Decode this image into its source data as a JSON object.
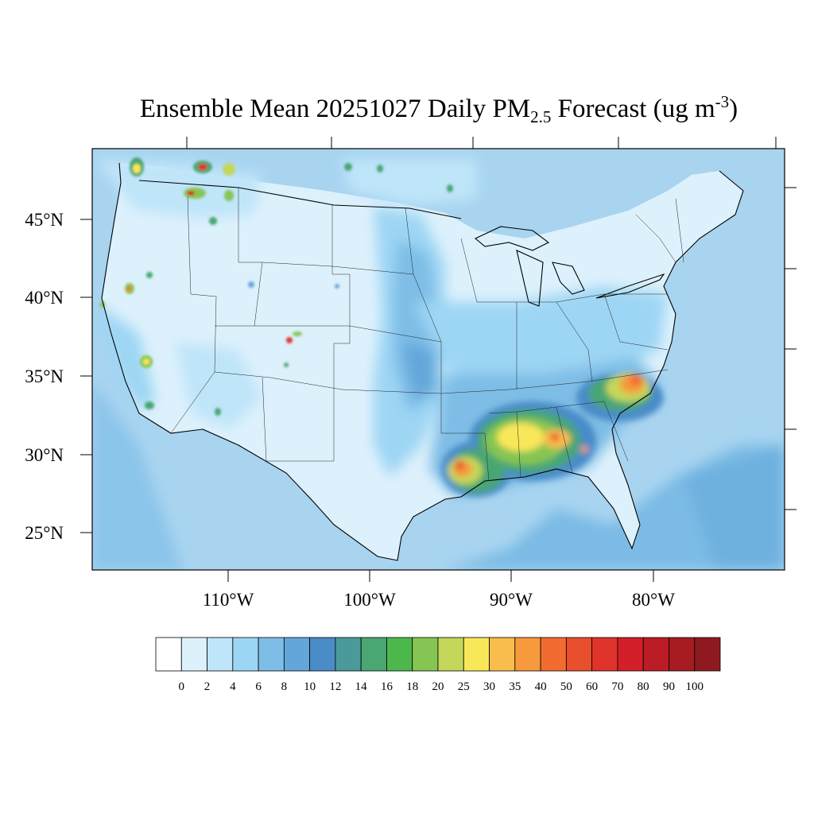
{
  "title": {
    "pre": "Ensemble Mean 20251027 Daily PM",
    "sub": "2.5",
    "mid": " Forecast (ug m",
    "sup": "-3",
    "post": ")"
  },
  "map": {
    "projection": "Lambert conformal conic, CONUS",
    "lon_labels": [
      "110°W",
      "100°W",
      "90°W",
      "80°W"
    ],
    "lat_labels": [
      "45°N",
      "40°N",
      "35°N",
      "30°N",
      "25°N"
    ],
    "background_color": "#a8d4f0",
    "land_color": "#dcf0fb",
    "hotspots": [
      {
        "region": "Southern Louisiana",
        "level": "40-60"
      },
      {
        "region": "Mississippi / Alabama",
        "level": "30-50"
      },
      {
        "region": "Georgia",
        "level": "25-40"
      },
      {
        "region": "North Carolina / South Carolina",
        "level": "40-60"
      },
      {
        "region": "Northern Rockies (Idaho / Montana / Washington)",
        "level": "30-80"
      },
      {
        "region": "Northern California",
        "level": "25-35"
      },
      {
        "region": "Colorado",
        "level": "30-50"
      }
    ]
  },
  "colorbar": {
    "ticks": [
      "0",
      "2",
      "4",
      "6",
      "8",
      "10",
      "12",
      "14",
      "16",
      "18",
      "20",
      "25",
      "30",
      "35",
      "40",
      "50",
      "60",
      "70",
      "80",
      "90",
      "100"
    ],
    "colors": [
      "#ffffff",
      "#ddf1fc",
      "#bfe5f9",
      "#9dd6f4",
      "#7ebde6",
      "#63a6da",
      "#4a8cc8",
      "#4b9a9b",
      "#4aa673",
      "#4cb84c",
      "#86c553",
      "#c4d75a",
      "#f9e75a",
      "#f9bd4d",
      "#f69a3d",
      "#f26b30",
      "#e94e2d",
      "#e0332b",
      "#d21f2a",
      "#bc1c26",
      "#a61c22",
      "#8e1a1f"
    ]
  }
}
